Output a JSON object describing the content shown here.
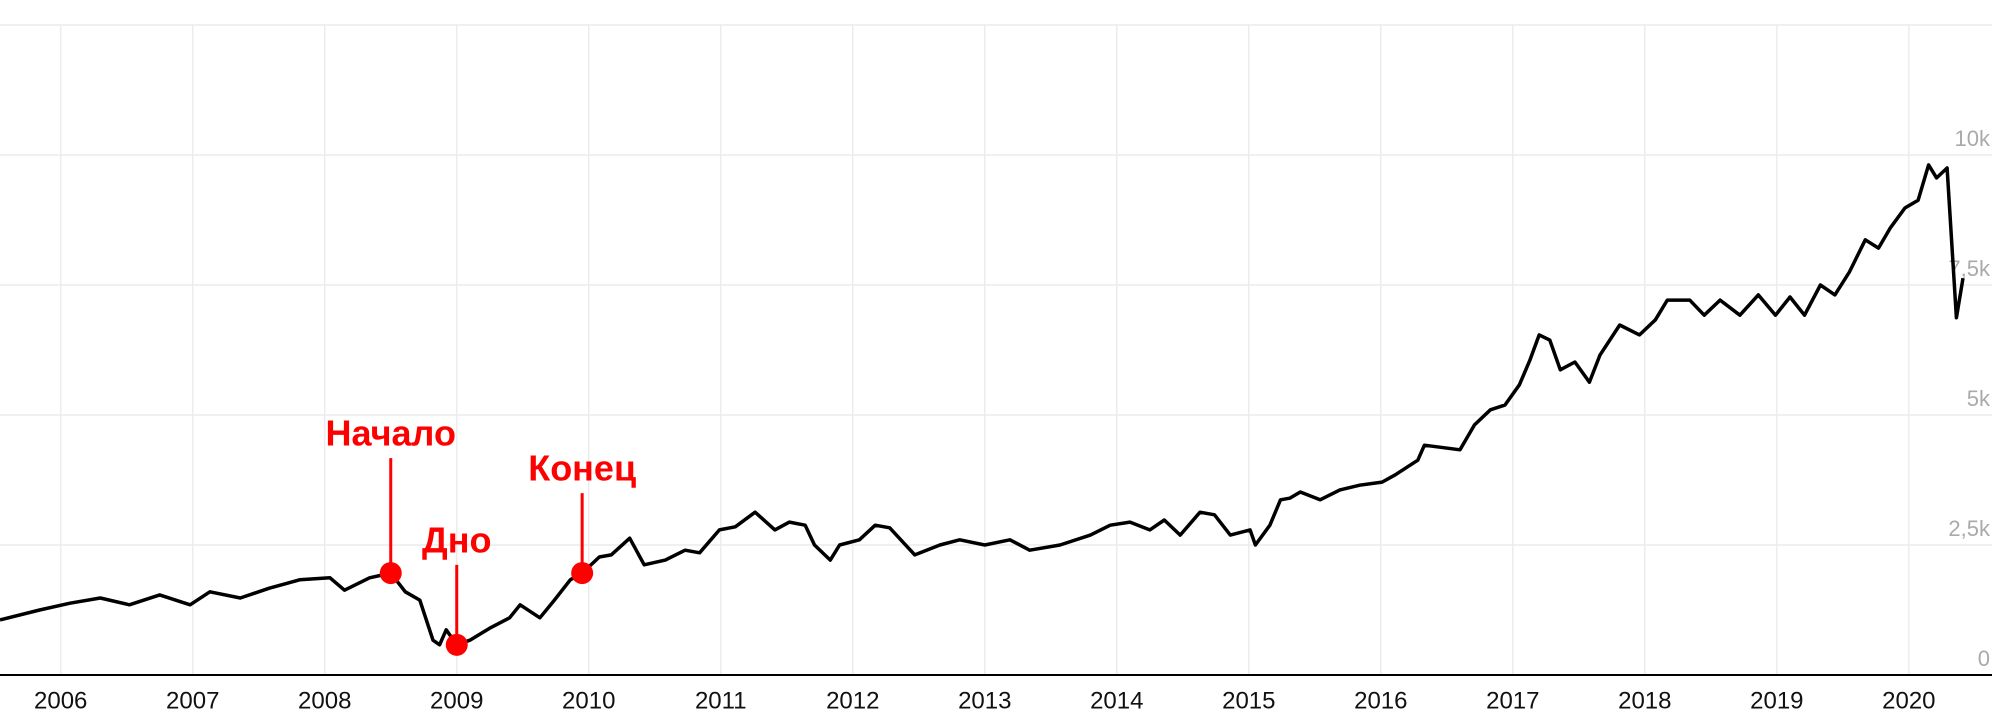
{
  "chart_data": {
    "type": "line",
    "x": [
      2005.54,
      2005.84,
      2006.07,
      2006.3,
      2006.52,
      2006.75,
      2006.98,
      2007.13,
      2007.36,
      2007.58,
      2007.81,
      2008.04,
      2008.15,
      2008.34,
      2008.5,
      2008.61,
      2008.72,
      2008.82,
      2008.87,
      2008.92,
      2009.0,
      2009.1,
      2009.25,
      2009.4,
      2009.48,
      2009.63,
      2009.74,
      2009.86,
      2009.95,
      2010.08,
      2010.17,
      2010.31,
      2010.42,
      2010.58,
      2010.73,
      2010.84,
      2010.99,
      2011.11,
      2011.26,
      2011.41,
      2011.52,
      2011.64,
      2011.71,
      2011.83,
      2011.9,
      2012.05,
      2012.17,
      2012.28,
      2012.47,
      2012.66,
      2012.81,
      2013.0,
      2013.19,
      2013.34,
      2013.57,
      2013.8,
      2013.95,
      2014.1,
      2014.25,
      2014.36,
      2014.48,
      2014.63,
      2014.74,
      2014.86,
      2015.01,
      2015.05,
      2015.16,
      2015.24,
      2015.31,
      2015.39,
      2015.54,
      2015.69,
      2015.84,
      2016.01,
      2016.11,
      2016.28,
      2016.33,
      2016.6,
      2016.71,
      2016.83,
      2016.94,
      2017.05,
      2017.13,
      2017.2,
      2017.28,
      2017.36,
      2017.47,
      2017.58,
      2017.66,
      2017.81,
      2017.96,
      2018.08,
      2018.17,
      2018.34,
      2018.45,
      2018.57,
      2018.72,
      2018.86,
      2018.99,
      2019.1,
      2019.21,
      2019.33,
      2019.44,
      2019.55,
      2019.67,
      2019.77,
      2019.86,
      2019.97,
      2020.07,
      2020.15,
      2020.21,
      2020.29,
      2020.36,
      2020.41
    ],
    "series": [
      {
        "color": "#000000",
        "values": [
          1060,
          1250,
          1380,
          1480,
          1350,
          1540,
          1350,
          1600,
          1480,
          1670,
          1830,
          1870,
          1630,
          1870,
          1960,
          1600,
          1440,
          670,
          580,
          870,
          580,
          670,
          900,
          1100,
          1350,
          1100,
          1440,
          1830,
          1960,
          2270,
          2310,
          2630,
          2120,
          2210,
          2400,
          2350,
          2790,
          2850,
          3130,
          2790,
          2940,
          2880,
          2500,
          2210,
          2500,
          2600,
          2880,
          2830,
          2310,
          2500,
          2600,
          2500,
          2600,
          2400,
          2500,
          2690,
          2880,
          2940,
          2790,
          2980,
          2690,
          3130,
          3080,
          2690,
          2790,
          2500,
          2880,
          3370,
          3400,
          3520,
          3370,
          3560,
          3650,
          3710,
          3850,
          4130,
          4420,
          4330,
          4810,
          5100,
          5190,
          5580,
          6060,
          6540,
          6440,
          5870,
          6020,
          5630,
          6150,
          6730,
          6540,
          6830,
          7210,
          7210,
          6920,
          7210,
          6920,
          7310,
          6920,
          7270,
          6920,
          7500,
          7310,
          7750,
          8370,
          8210,
          8600,
          8980,
          9130,
          9810,
          9560,
          9750,
          6870,
          7630
        ]
      }
    ],
    "xlim": [
      2005.54,
      2020.63
    ],
    "xticks": [
      2006,
      2007,
      2008,
      2009,
      2010,
      2011,
      2012,
      2013,
      2014,
      2015,
      2016,
      2017,
      2018,
      2019,
      2020
    ],
    "ylim": [
      0,
      12500
    ],
    "yticks": [
      0,
      {
        "value": 2500,
        "label": "2,5k"
      },
      {
        "value": 5000,
        "label": "5k"
      },
      {
        "value": 7500,
        "label": "7,5k"
      },
      {
        "value": 10000,
        "label": "10k"
      }
    ],
    "grid": true,
    "annotations": [
      {
        "text": "Начало",
        "x": 2008.5,
        "y": 1960,
        "color": "#ff0000"
      },
      {
        "text": "Дно",
        "x": 2009.0,
        "y": 580,
        "color": "#ff0000"
      },
      {
        "text": "Конец",
        "x": 2009.95,
        "y": 1960,
        "color": "#ff0000"
      }
    ]
  }
}
